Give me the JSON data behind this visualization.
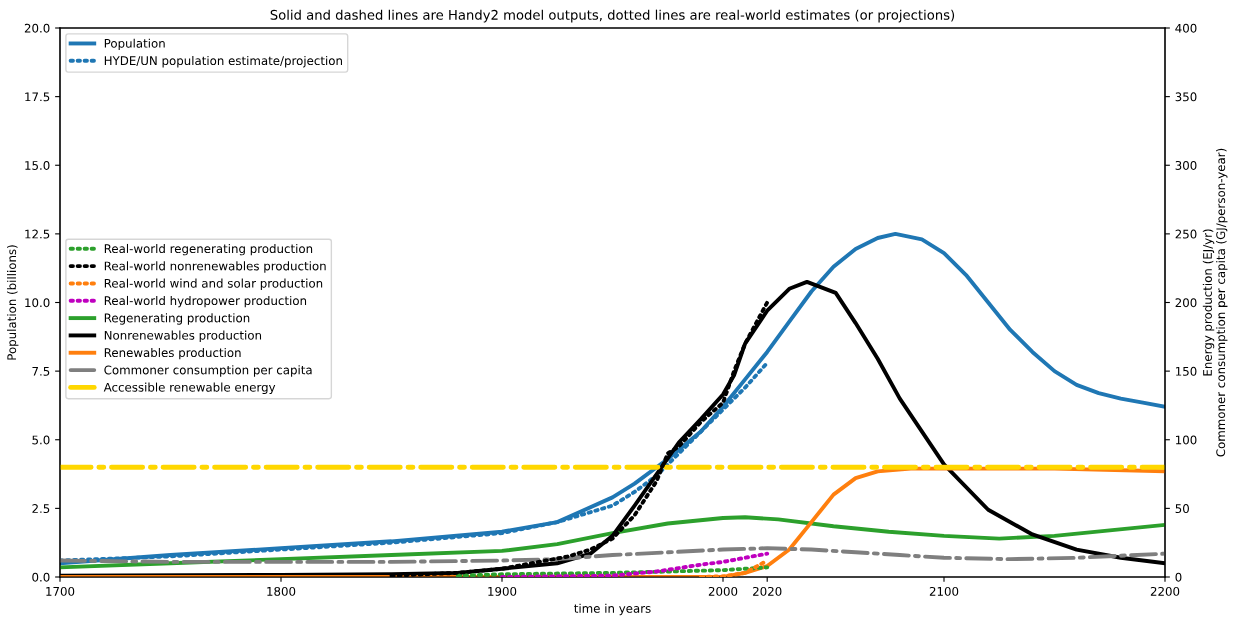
{
  "chart_data": {
    "type": "line",
    "title": "Solid and dashed lines are Handy2 model outputs, dotted lines are real-world estimates (or projections)",
    "xlabel": "time in years",
    "ylabel": "Population (billions)",
    "y2label": "Energy production (EJ/yr)\nCommoner consumption per capita (GJ/person-year)",
    "xlim": [
      1700,
      2200
    ],
    "xticks": [
      1700,
      1800,
      1900,
      2000,
      2020,
      2100,
      2200
    ],
    "ylim": [
      0,
      20
    ],
    "yticks": [
      {
        "value": 0,
        "label": "0.0"
      },
      {
        "value": 2.5,
        "label": "2.5"
      },
      {
        "value": 5,
        "label": "5.0"
      },
      {
        "value": 7.5,
        "label": "7.5"
      },
      {
        "value": 10,
        "label": "10.0"
      },
      {
        "value": 12.5,
        "label": "12.5"
      },
      {
        "value": 15,
        "label": "15.0"
      },
      {
        "value": 17.5,
        "label": "17.5"
      },
      {
        "value": 20,
        "label": "20.0"
      }
    ],
    "y2lim": [
      0,
      400
    ],
    "y2ticks": [
      0,
      50,
      100,
      150,
      200,
      250,
      300,
      350,
      400
    ],
    "legend": "top left",
    "grid": false,
    "series": [
      {
        "name": "Population",
        "color": "#1f77b4",
        "line_style": "solid",
        "x": [
          1700,
          1750,
          1800,
          1850,
          1900,
          1925,
          1950,
          1960,
          1975,
          1990,
          2000,
          2010,
          2020,
          2030,
          2040,
          2050,
          2060,
          2070,
          2078,
          2090,
          2100,
          2110,
          2120,
          2130,
          2140,
          2150,
          2160,
          2170,
          2180,
          2190,
          2200
        ],
        "values": [
          0.5,
          0.8,
          1.05,
          1.3,
          1.65,
          2.0,
          2.9,
          3.4,
          4.3,
          5.3,
          6.2,
          7.2,
          8.2,
          9.3,
          10.4,
          11.3,
          11.95,
          12.35,
          12.5,
          12.3,
          11.8,
          11.0,
          10.0,
          9.0,
          8.2,
          7.5,
          7.0,
          6.7,
          6.5,
          6.35,
          6.2
        ]
      },
      {
        "name": "HYDE/UN population estimate/projection",
        "color": "#1f77b4",
        "line_style": "dotted",
        "x": [
          1700,
          1750,
          1800,
          1850,
          1900,
          1925,
          1950,
          1960,
          1970,
          1980,
          1990,
          2000,
          2010,
          2020
        ],
        "values": [
          0.6,
          0.75,
          1.0,
          1.25,
          1.6,
          2.0,
          2.6,
          3.1,
          3.7,
          4.5,
          5.3,
          6.1,
          6.9,
          7.8
        ]
      },
      {
        "name": "Real-world regenerating production",
        "axis": "y2",
        "color": "#2ca02c",
        "line_style": "dotted",
        "x": [
          1880,
          1900,
          1950,
          2000,
          2020
        ],
        "values": [
          1,
          2,
          3,
          5,
          7
        ]
      },
      {
        "name": "Real-world nonrenewables production",
        "axis": "y2",
        "color": "#000000",
        "line_style": "dotted",
        "x": [
          1850,
          1880,
          1900,
          1910,
          1920,
          1930,
          1940,
          1950,
          1960,
          1970,
          1975,
          1980,
          1990,
          2000,
          2005,
          2010,
          2015,
          2020
        ],
        "values": [
          1,
          3,
          6,
          9,
          12,
          15,
          20,
          28,
          45,
          70,
          90,
          95,
          113,
          127,
          150,
          170,
          185,
          200
        ]
      },
      {
        "name": "Real-world wind and solar production",
        "axis": "y2",
        "color": "#ff7f0e",
        "line_style": "dotted",
        "x": [
          1990,
          2000,
          2010,
          2020
        ],
        "values": [
          0,
          0.5,
          3,
          12
        ]
      },
      {
        "name": "Real-world hydropower production",
        "axis": "y2",
        "color": "#bf00bf",
        "line_style": "dotted",
        "x": [
          1900,
          1950,
          1960,
          1970,
          1980,
          1990,
          2000,
          2010,
          2020
        ],
        "values": [
          0,
          1,
          2.5,
          4,
          6.5,
          9,
          11,
          14,
          17
        ]
      },
      {
        "name": "Regenerating production",
        "axis": "y2",
        "color": "#2ca02c",
        "line_style": "solid",
        "x": [
          1700,
          1750,
          1800,
          1850,
          1900,
          1925,
          1950,
          1975,
          2000,
          2010,
          2025,
          2050,
          2075,
          2100,
          2125,
          2150,
          2175,
          2200
        ],
        "values": [
          7,
          10,
          13,
          16,
          19,
          24,
          32,
          39,
          43,
          43.5,
          42,
          37,
          33,
          30,
          28,
          30,
          34,
          38
        ]
      },
      {
        "name": "Nonrenewables production",
        "axis": "y2",
        "color": "#000000",
        "line_style": "solid",
        "x": [
          1700,
          1800,
          1850,
          1880,
          1900,
          1925,
          1940,
          1950,
          1960,
          1970,
          1980,
          1990,
          2000,
          2005,
          2010,
          2020,
          2030,
          2038,
          2051,
          2060,
          2070,
          2080,
          2100,
          2120,
          2140,
          2160,
          2180,
          2200
        ],
        "values": [
          1,
          1.5,
          2,
          3,
          6,
          10,
          17,
          30,
          52,
          75,
          98,
          115,
          133,
          147,
          170,
          194,
          210,
          215,
          207,
          185,
          159,
          130,
          82,
          49,
          31,
          20,
          14,
          10
        ]
      },
      {
        "name": "Renewables production",
        "axis": "y2",
        "color": "#ff7f0e",
        "line_style": "solid",
        "x": [
          1700,
          2000,
          2010,
          2020,
          2030,
          2040,
          2050,
          2060,
          2070,
          2085,
          2100,
          2150,
          2200
        ],
        "values": [
          0,
          0,
          3,
          8,
          20,
          40,
          60,
          72,
          77,
          79,
          79,
          79,
          77
        ]
      },
      {
        "name": "Commoner consumption per capita",
        "axis": "y2",
        "color": "#7f7f7f",
        "line_style": "dashdot",
        "x": [
          1700,
          1750,
          1800,
          1850,
          1900,
          1925,
          1950,
          1975,
          2000,
          2020,
          2040,
          2060,
          2080,
          2100,
          2130,
          2160,
          2200
        ],
        "values": [
          12,
          11,
          11,
          11,
          12,
          13,
          16,
          18,
          20,
          21,
          20,
          18,
          16,
          14,
          13,
          14,
          17
        ]
      },
      {
        "name": "Accessible renewable energy",
        "axis": "y2",
        "color": "#ffd700",
        "line_style": "dashdot",
        "x": [
          1700,
          2200
        ],
        "values": [
          80,
          80
        ]
      }
    ]
  }
}
